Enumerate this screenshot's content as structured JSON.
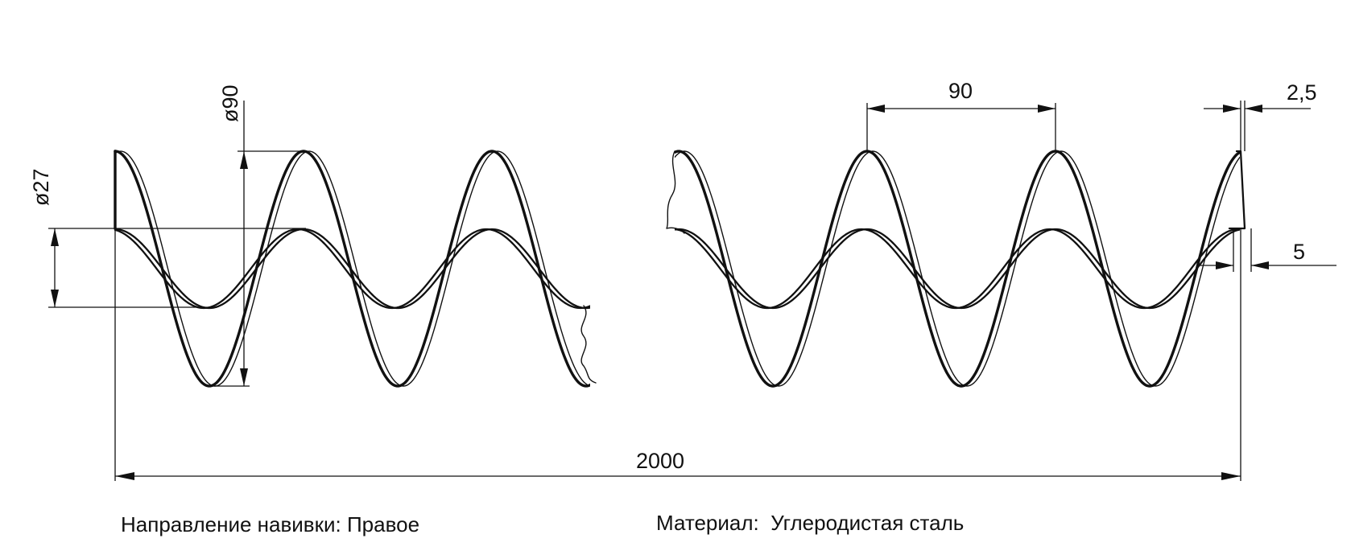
{
  "dimensions": {
    "outer_diameter": "ø90",
    "inner_diameter": "ø27",
    "pitch": "90",
    "strip_thickness": "2,5",
    "strip_width": "5",
    "total_length": "2000"
  },
  "notes": {
    "winding_label": "Направление навивки:",
    "winding_value": "Правое",
    "material_label": "Материал:",
    "material_value": "Углеродистая сталь"
  }
}
